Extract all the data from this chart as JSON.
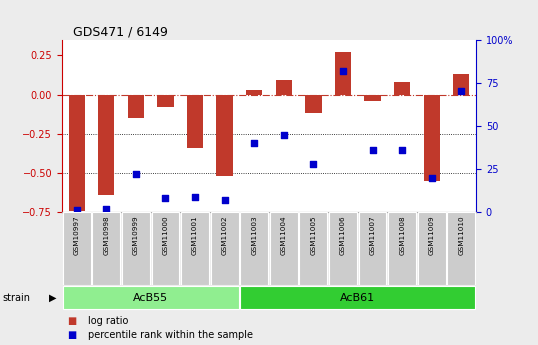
{
  "title": "GDS471 / 6149",
  "samples": [
    "GSM10997",
    "GSM10998",
    "GSM10999",
    "GSM11000",
    "GSM11001",
    "GSM11002",
    "GSM11003",
    "GSM11004",
    "GSM11005",
    "GSM11006",
    "GSM11007",
    "GSM11008",
    "GSM11009",
    "GSM11010"
  ],
  "log_ratio": [
    -0.74,
    -0.64,
    -0.15,
    -0.08,
    -0.34,
    -0.52,
    0.03,
    0.09,
    -0.12,
    0.27,
    -0.04,
    0.08,
    -0.55,
    0.13
  ],
  "percentile_rank": [
    1,
    2,
    22,
    8,
    9,
    7,
    40,
    45,
    28,
    82,
    36,
    36,
    20,
    70
  ],
  "ylim_left": [
    -0.75,
    0.35
  ],
  "ylim_right": [
    0,
    100
  ],
  "strains": [
    {
      "label": "AcB55",
      "start": 0,
      "end": 6,
      "color": "#90ee90"
    },
    {
      "label": "AcB61",
      "start": 6,
      "end": 14,
      "color": "#32cd32"
    }
  ],
  "bar_color": "#c0392b",
  "dot_color": "#0000cc",
  "hline_color": "#c0392b",
  "bg_color": "#ececec",
  "plot_bg": "#ffffff",
  "left_tick_color": "#cc0000",
  "right_tick_color": "#0000cc",
  "legend_items": [
    "log ratio",
    "percentile rank within the sample"
  ],
  "left_yticks": [
    0.25,
    0.0,
    -0.25,
    -0.5,
    -0.75
  ],
  "right_yticks": [
    0,
    25,
    50,
    75,
    100
  ],
  "right_yticklabels": [
    "0",
    "25",
    "50",
    "75",
    "100%"
  ]
}
